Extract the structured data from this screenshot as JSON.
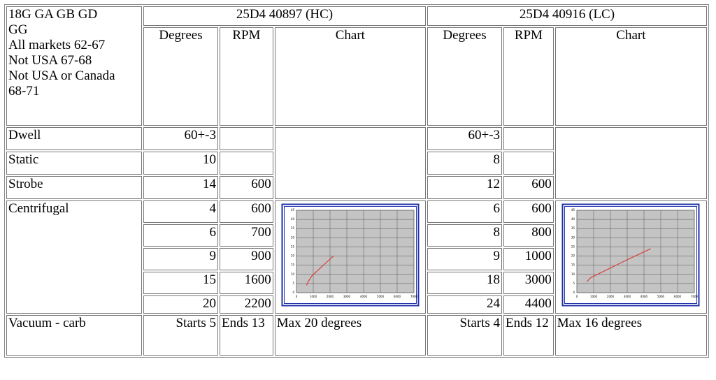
{
  "table": {
    "header": {
      "model_lines": [
        "18G GA GB GD",
        "GG",
        "All markets 62-67",
        "Not USA 67-68",
        "Not USA or Canada",
        "68-71"
      ],
      "hc": "25D4 40897 (HC)",
      "lc": "25D4 40916 (LC)"
    },
    "columns": {
      "hc": [
        "Degrees",
        "RPM",
        "Chart"
      ],
      "lc": [
        "Degrees",
        "RPM",
        "Chart"
      ]
    },
    "dwell": {
      "label": "Dwell",
      "hc_degrees": "60+-3",
      "lc_degrees": "60+-3"
    },
    "static": {
      "label": "Static",
      "hc_degrees": 10,
      "lc_degrees": 8
    },
    "strobe": {
      "label": "Strobe",
      "hc_degrees": 14,
      "hc_rpm": 600,
      "lc_degrees": 12,
      "lc_rpm": 600
    },
    "centrifugal": {
      "label": "Centrifugal",
      "hc": {
        "degrees": [
          4,
          6,
          9,
          15,
          20
        ],
        "rpm": [
          600,
          700,
          900,
          1600,
          2200
        ]
      },
      "lc": {
        "degrees": [
          6,
          8,
          9,
          18,
          24
        ],
        "rpm": [
          600,
          800,
          1000,
          3000,
          4400
        ]
      }
    },
    "vacuum": {
      "label": "Vacuum - carb",
      "hc": [
        "Starts 5",
        "Ends 13",
        "Max 20 degrees"
      ],
      "lc": [
        "Starts 4",
        "Ends 12",
        "Max 16 degrees"
      ]
    }
  },
  "chart": {
    "xlim": [
      0,
      7000
    ],
    "xticks": [
      0,
      1000,
      2000,
      3000,
      4000,
      5000,
      6000,
      7000
    ],
    "ylim": [
      0,
      45
    ],
    "yticks": [
      0,
      5,
      10,
      15,
      20,
      25,
      30,
      35,
      40,
      45
    ],
    "line_color": "#d9413a",
    "grid": true
  }
}
